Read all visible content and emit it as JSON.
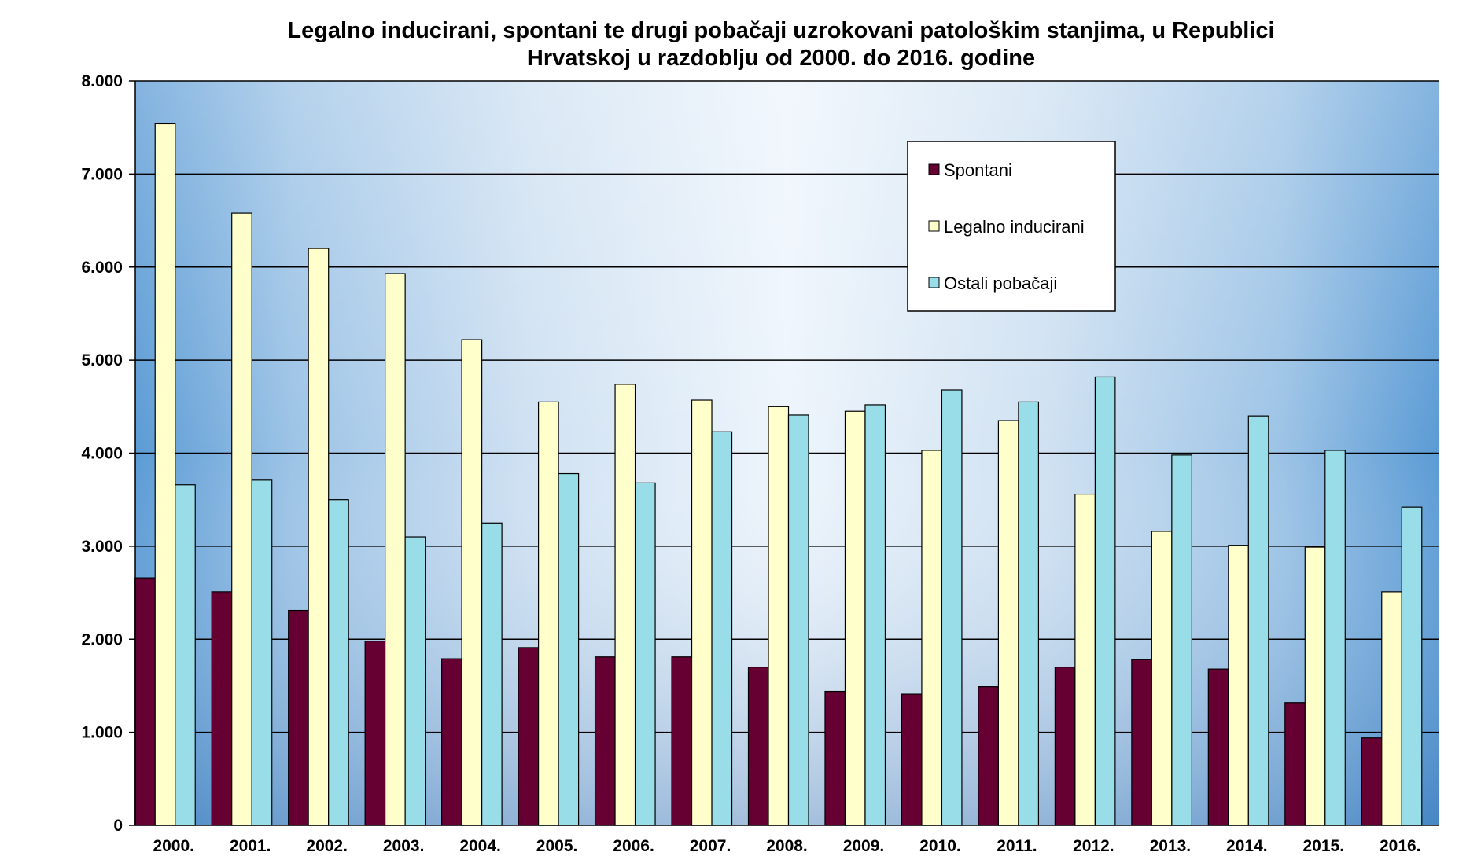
{
  "chart_data": {
    "type": "bar",
    "title": "Legalno inducirani, spontani te drugi pobačaji uzrokovani patološkim stanjima, u Republici Hrvatskoj u razdoblju od 2000. do 2016. godine",
    "title_lines": [
      "Legalno inducirani, spontani te drugi pobačaji uzrokovani patološkim stanjima, u Republici",
      "Hrvatskoj u razdoblju od 2000. do 2016. godine"
    ],
    "xlabel": "",
    "ylabel": "",
    "categories": [
      "2000.",
      "2001.",
      "2002.",
      "2003.",
      "2004.",
      "2005.",
      "2006.",
      "2007.",
      "2008.",
      "2009.",
      "2010.",
      "2011.",
      "2012.",
      "2013.",
      "2014.",
      "2015.",
      "2016."
    ],
    "ylim": [
      0,
      8000
    ],
    "y_ticks": [
      0,
      1000,
      2000,
      3000,
      4000,
      5000,
      6000,
      7000,
      8000
    ],
    "y_tick_labels": [
      "0",
      "1.000",
      "2.000",
      "3.000",
      "4.000",
      "5.000",
      "6.000",
      "7.000",
      "8.000"
    ],
    "grid": true,
    "legend_position": "top-right",
    "series": [
      {
        "name": "Spontani",
        "color": "#660033",
        "values": [
          2660,
          2510,
          2310,
          1980,
          1790,
          1910,
          1810,
          1810,
          1700,
          1440,
          1410,
          1490,
          1700,
          1780,
          1680,
          1320,
          940
        ]
      },
      {
        "name": "Legalno inducirani",
        "color": "#ffffcc",
        "values": [
          7540,
          6580,
          6200,
          5930,
          5220,
          4550,
          4740,
          4570,
          4500,
          4450,
          4030,
          4350,
          3560,
          3160,
          3010,
          2990,
          2510
        ]
      },
      {
        "name": "Ostali pobačaji",
        "color": "#99dde8",
        "values": [
          3660,
          3710,
          3500,
          3100,
          3250,
          3780,
          3680,
          4230,
          4410,
          4520,
          4680,
          4550,
          4820,
          3980,
          4400,
          4030,
          3420
        ]
      }
    ]
  }
}
